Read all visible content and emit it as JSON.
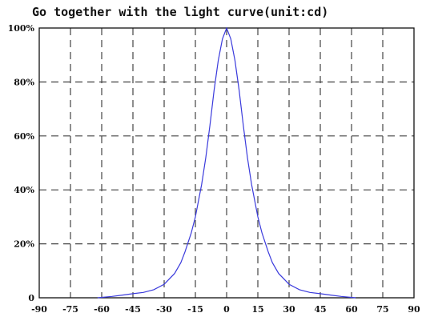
{
  "chart_data": {
    "type": "line",
    "title": "Go together with the light curve(unit:cd)",
    "xlabel": "",
    "ylabel": "",
    "xlim": [
      -90,
      90
    ],
    "ylim": [
      0,
      100
    ],
    "x_ticks": [
      "-90",
      "-75",
      "-60",
      "-45",
      "-30",
      "-15",
      "0",
      "15",
      "30",
      "45",
      "60",
      "75",
      "90"
    ],
    "y_ticks": [
      "0",
      "20%",
      "40%",
      "60%",
      "80%",
      "100%"
    ],
    "grid": true,
    "series": [
      {
        "color": "#3b3bdc",
        "x": [
          -62,
          -55,
          -50,
          -45,
          -40,
          -35,
          -30,
          -25,
          -22,
          -20,
          -17,
          -15,
          -12,
          -10,
          -8,
          -6,
          -4,
          -2,
          0,
          2,
          4,
          6,
          8,
          10,
          12,
          15,
          17,
          20,
          22,
          25,
          30,
          35,
          40,
          45,
          50,
          55,
          62
        ],
        "y": [
          0,
          0.5,
          1,
          1.5,
          2,
          3,
          5,
          9,
          13,
          17,
          24,
          30,
          42,
          52,
          64,
          77,
          88,
          96,
          100,
          96,
          88,
          77,
          64,
          52,
          42,
          30,
          24,
          17,
          13,
          9,
          5,
          3,
          2,
          1.5,
          1,
          0.5,
          0
        ]
      }
    ]
  }
}
